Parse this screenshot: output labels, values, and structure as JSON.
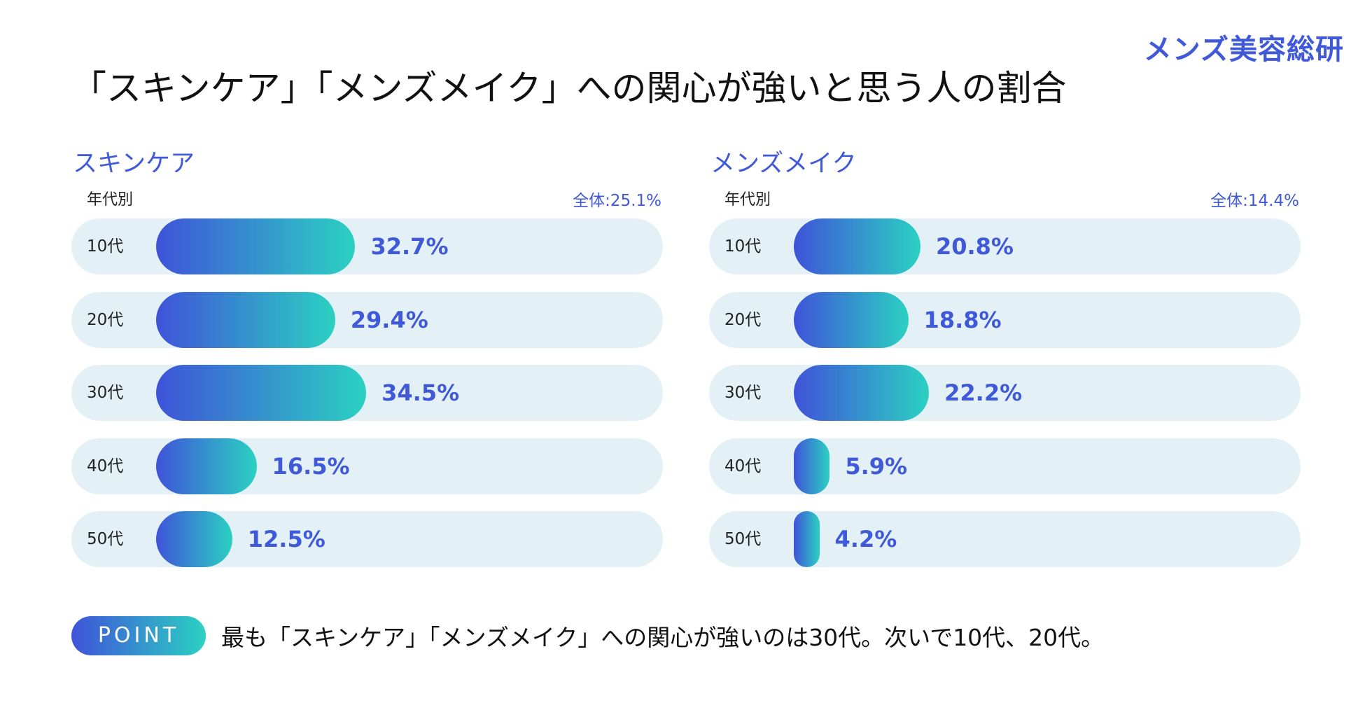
{
  "logo": "メンズ美容総研",
  "title": "「スキンケア」「メンズメイク」への関心が強いと思う人の割合",
  "colors": {
    "accent": "#3f59d8",
    "bar_start": "#3f53d9",
    "bar_end": "#2bd1c2",
    "track": "#e3f1f6"
  },
  "chart_data": [
    {
      "type": "bar",
      "orientation": "horizontal",
      "title": "スキンケア",
      "category_header": "年代別",
      "overall": "全体:25.1%",
      "categories": [
        "10代",
        "20代",
        "30代",
        "40代",
        "50代"
      ],
      "values": [
        32.7,
        29.4,
        34.5,
        16.5,
        12.5
      ],
      "labels": [
        "32.7%",
        "29.4%",
        "34.5%",
        "16.5%",
        "12.5%"
      ],
      "unit": "%",
      "xlim": [
        0,
        100
      ]
    },
    {
      "type": "bar",
      "orientation": "horizontal",
      "title": "メンズメイク",
      "category_header": "年代別",
      "overall": "全体:14.4%",
      "categories": [
        "10代",
        "20代",
        "30代",
        "40代",
        "50代"
      ],
      "values": [
        20.8,
        18.8,
        22.2,
        5.9,
        4.2
      ],
      "labels": [
        "20.8%",
        "18.8%",
        "22.2%",
        "5.9%",
        "4.2%"
      ],
      "unit": "%",
      "xlim": [
        0,
        100
      ]
    }
  ],
  "point": {
    "badge": "POINT",
    "text": "最も「スキンケア」「メンズメイク」への関心が強いのは30代。次いで10代、20代。"
  }
}
